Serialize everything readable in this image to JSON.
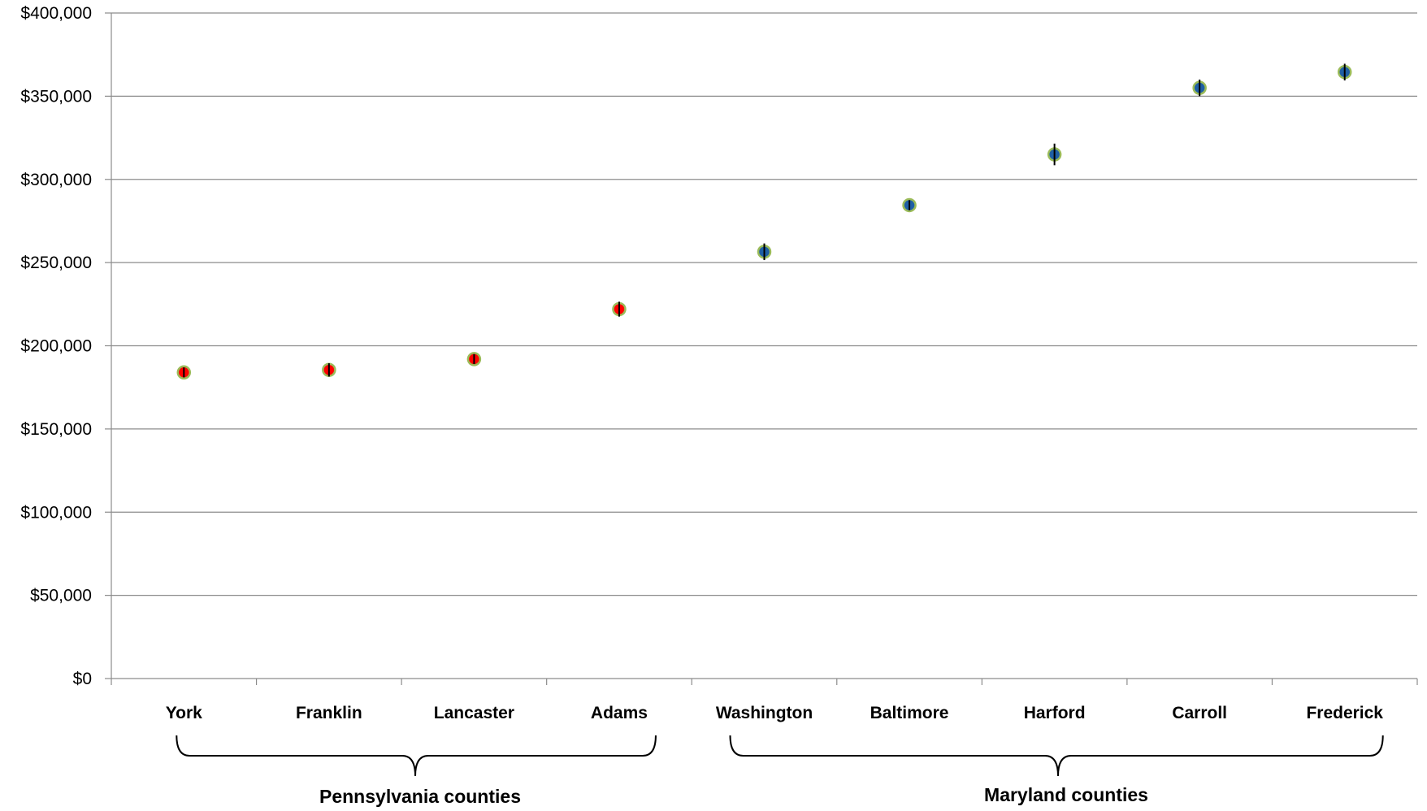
{
  "chart_data": {
    "type": "scatter",
    "categories": [
      "York",
      "Franklin",
      "Lancaster",
      "Adams",
      "Washington",
      "Baltimore",
      "Harford",
      "Carroll",
      "Frederick"
    ],
    "values": [
      184000,
      185500,
      192000,
      222000,
      256500,
      284500,
      315000,
      355000,
      364500
    ],
    "error": [
      3000,
      4000,
      3000,
      4500,
      5000,
      3000,
      6500,
      5000,
      5000
    ],
    "point_colors": [
      "#ff0000",
      "#ff0000",
      "#ff0000",
      "#ff0000",
      "#1f5fa5",
      "#1f5fa5",
      "#1f5fa5",
      "#1f5fa5",
      "#1f5fa5"
    ],
    "marker_outline": "#9bbb59",
    "ylim": [
      0,
      400000
    ],
    "yticks": [
      0,
      50000,
      100000,
      150000,
      200000,
      250000,
      300000,
      350000,
      400000
    ],
    "ytick_labels": [
      "$0",
      "$50,000",
      "$100,000",
      "$150,000",
      "$200,000",
      "$250,000",
      "$300,000",
      "$350,000",
      "$400,000"
    ],
    "grid": true,
    "groups": [
      {
        "label": "Pennsylvania counties",
        "start": 0,
        "end": 3
      },
      {
        "label": "Maryland counties",
        "start": 4,
        "end": 8
      }
    ]
  }
}
